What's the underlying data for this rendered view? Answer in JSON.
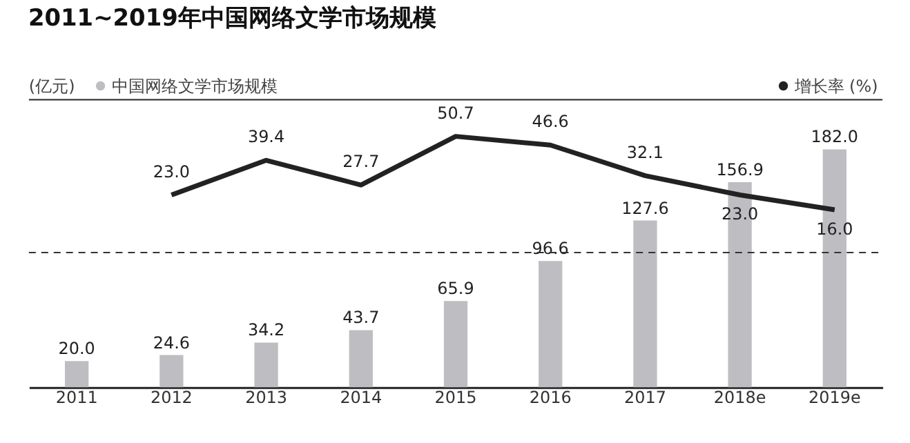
{
  "chart_data": {
    "type": "bar",
    "title": "2011~2019年中国网络文学市场规模",
    "ylabel": "(亿元)",
    "categories": [
      "2011",
      "2012",
      "2013",
      "2014",
      "2015",
      "2016",
      "2017",
      "2018e",
      "2019e"
    ],
    "series": [
      {
        "name": "中国网络文学市场规模",
        "color": "#bebec2",
        "values": [
          20.0,
          24.6,
          34.2,
          43.7,
          65.9,
          96.6,
          127.6,
          156.9,
          182.0
        ],
        "value_labels": [
          "20.0",
          "24.6",
          "34.2",
          "43.7",
          "65.9",
          "96.6",
          "127.6",
          "156.9",
          "182.0"
        ]
      },
      {
        "name": "增长率 (%)",
        "type": "line",
        "axis": "y2",
        "color": "#222222",
        "values": [
          null,
          23.0,
          39.4,
          27.7,
          50.7,
          46.6,
          32.1,
          23.0,
          16.0
        ],
        "value_labels": [
          null,
          "23.0",
          "39.4",
          "27.7",
          "50.7",
          "46.6",
          "32.1",
          "23.0",
          "16.0"
        ]
      }
    ],
    "tick_labels": "x",
    "grid": false,
    "legend": "top",
    "marker": "none",
    "ref_lines": [
      {
        "axis": "y",
        "value": 103,
        "color": "#333333",
        "line_style": "dashed"
      }
    ]
  }
}
